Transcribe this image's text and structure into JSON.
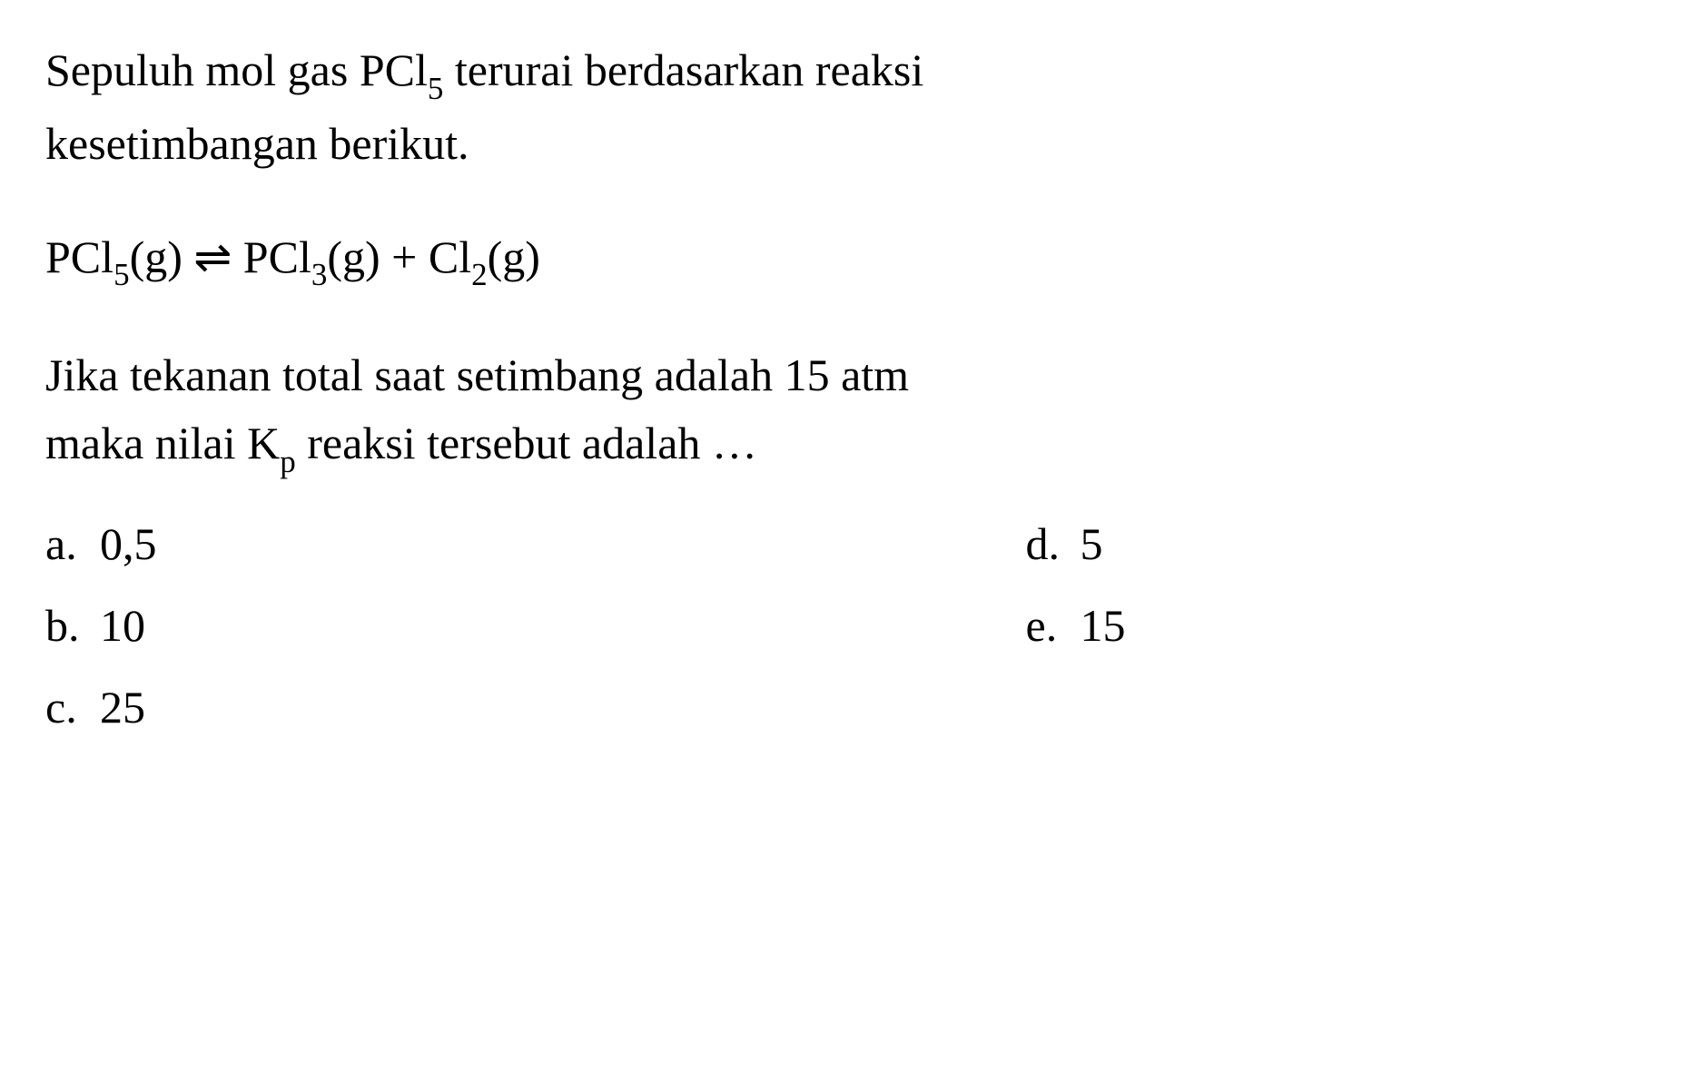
{
  "question": {
    "intro_line1": "Sepuluh mol gas PCl",
    "intro_sub1": "5",
    "intro_line1_cont": " terurai berdasarkan reaksi",
    "intro_line2": "kesetimbangan berikut.",
    "equation": {
      "lhs_text": "PCl",
      "lhs_sub": "5",
      "lhs_state": "(g)",
      "arrow": "⇌",
      "rhs1_text": "PCl",
      "rhs1_sub": "3",
      "rhs1_state": "(g)",
      "plus": " + ",
      "rhs2_text": "Cl",
      "rhs2_sub": "2",
      "rhs2_state": "(g)"
    },
    "end_line1": "Jika tekanan total saat setimbang adalah 15 atm",
    "end_line2_part1": "maka nilai K",
    "end_line2_sub": "p",
    "end_line2_part2": " reaksi tersebut adalah …"
  },
  "options": {
    "a": {
      "label": "a.",
      "value": "0,5"
    },
    "b": {
      "label": "b.",
      "value": "10"
    },
    "c": {
      "label": "c.",
      "value": "25"
    },
    "d": {
      "label": "d.",
      "value": "5"
    },
    "e": {
      "label": "e.",
      "value": "15"
    }
  },
  "styling": {
    "font_family": "Times New Roman",
    "font_size_pt": 50,
    "text_color": "#000000",
    "background_color": "#ffffff",
    "subscript_scale": 0.7
  }
}
